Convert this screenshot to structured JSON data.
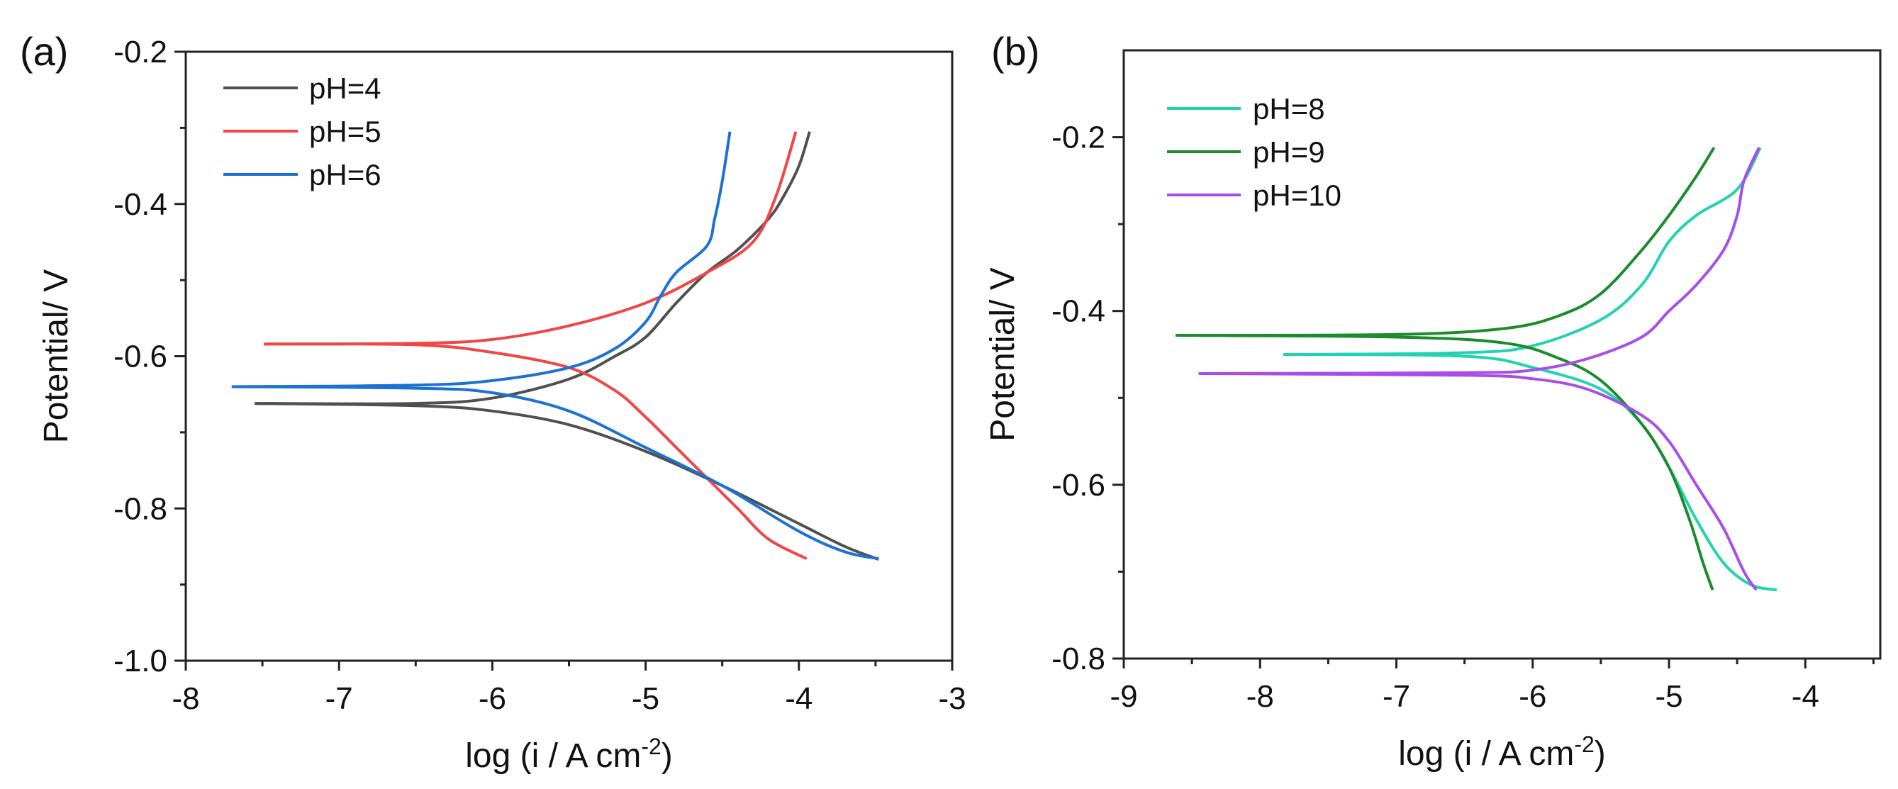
{
  "chart_data": [
    {
      "type": "line",
      "panel_label": "(a)",
      "xlabel": "log (i / A cm",
      "xlabel_sup": "-2",
      "xlabel_close": ")",
      "ylabel": "Potential/ V",
      "xlim": [
        -8,
        -3
      ],
      "ylim": [
        -1.0,
        -0.2
      ],
      "xticks": [
        "-8",
        "-7",
        "-6",
        "-5",
        "-4",
        "-3"
      ],
      "yticks": [
        "-0.2",
        "-0.4",
        "-0.6",
        "-0.8",
        "-1.0"
      ],
      "legend_position": "top-left",
      "series": [
        {
          "name": "pH=4",
          "color": "#505050",
          "anodic": [
            [
              -7.55,
              -0.662
            ],
            [
              -6.5,
              -0.662
            ],
            [
              -6,
              -0.655
            ],
            [
              -5.5,
              -0.63
            ],
            [
              -5.2,
              -0.6
            ],
            [
              -5,
              -0.575
            ],
            [
              -4.8,
              -0.53
            ],
            [
              -4.6,
              -0.49
            ],
            [
              -4.4,
              -0.46
            ],
            [
              -4.2,
              -0.42
            ],
            [
              -4.1,
              -0.39
            ],
            [
              -4.0,
              -0.35
            ],
            [
              -3.93,
              -0.305
            ]
          ],
          "cathodic": [
            [
              -7.55,
              -0.662
            ],
            [
              -6.5,
              -0.665
            ],
            [
              -6,
              -0.672
            ],
            [
              -5.5,
              -0.69
            ],
            [
              -5,
              -0.725
            ],
            [
              -4.5,
              -0.77
            ],
            [
              -4,
              -0.82
            ],
            [
              -3.7,
              -0.85
            ],
            [
              -3.48,
              -0.867
            ]
          ]
        },
        {
          "name": "pH=5",
          "color": "#f24545",
          "anodic": [
            [
              -7.49,
              -0.584
            ],
            [
              -6.5,
              -0.583
            ],
            [
              -6,
              -0.578
            ],
            [
              -5.5,
              -0.56
            ],
            [
              -5,
              -0.53
            ],
            [
              -4.6,
              -0.49
            ],
            [
              -4.3,
              -0.45
            ],
            [
              -4.15,
              -0.39
            ],
            [
              -4.02,
              -0.305
            ]
          ],
          "cathodic": [
            [
              -7.49,
              -0.584
            ],
            [
              -6.5,
              -0.585
            ],
            [
              -6,
              -0.595
            ],
            [
              -5.5,
              -0.615
            ],
            [
              -5.2,
              -0.645
            ],
            [
              -5,
              -0.68
            ],
            [
              -4.8,
              -0.72
            ],
            [
              -4.6,
              -0.76
            ],
            [
              -4.4,
              -0.8
            ],
            [
              -4.2,
              -0.84
            ],
            [
              -3.95,
              -0.866
            ]
          ]
        },
        {
          "name": "pH=6",
          "color": "#1c72d4",
          "anodic": [
            [
              -7.7,
              -0.64
            ],
            [
              -6.5,
              -0.638
            ],
            [
              -6,
              -0.632
            ],
            [
              -5.5,
              -0.615
            ],
            [
              -5.2,
              -0.59
            ],
            [
              -5,
              -0.555
            ],
            [
              -4.9,
              -0.52
            ],
            [
              -4.8,
              -0.49
            ],
            [
              -4.6,
              -0.455
            ],
            [
              -4.55,
              -0.42
            ],
            [
              -4.5,
              -0.37
            ],
            [
              -4.45,
              -0.305
            ]
          ],
          "cathodic": [
            [
              -7.7,
              -0.64
            ],
            [
              -6.5,
              -0.642
            ],
            [
              -6,
              -0.648
            ],
            [
              -5.5,
              -0.672
            ],
            [
              -5,
              -0.72
            ],
            [
              -4.5,
              -0.77
            ],
            [
              -4,
              -0.83
            ],
            [
              -3.7,
              -0.857
            ],
            [
              -3.48,
              -0.866
            ]
          ]
        }
      ]
    },
    {
      "type": "line",
      "panel_label": "(b)",
      "xlabel": "log (i / A cm",
      "xlabel_sup": "-2",
      "xlabel_close": ")",
      "ylabel": "Potential/ V",
      "xlim": [
        -9,
        -3.45
      ],
      "ylim": [
        -0.8,
        -0.1
      ],
      "xticks": [
        "-9",
        "-8",
        "-7",
        "-6",
        "-5",
        "-4"
      ],
      "yticks": [
        "-0.2",
        "-0.4",
        "-0.6",
        "-0.8"
      ],
      "legend_position": "top-left",
      "series": [
        {
          "name": "pH=8",
          "color": "#22d3b2",
          "anodic": [
            [
              -7.83,
              -0.45
            ],
            [
              -6.5,
              -0.448
            ],
            [
              -6,
              -0.44
            ],
            [
              -5.5,
              -0.41
            ],
            [
              -5.2,
              -0.37
            ],
            [
              -5,
              -0.32
            ],
            [
              -4.8,
              -0.29
            ],
            [
              -4.5,
              -0.26
            ],
            [
              -4.33,
              -0.212
            ]
          ],
          "cathodic": [
            [
              -7.83,
              -0.45
            ],
            [
              -6.5,
              -0.452
            ],
            [
              -6,
              -0.465
            ],
            [
              -5.5,
              -0.49
            ],
            [
              -5.2,
              -0.53
            ],
            [
              -5,
              -0.58
            ],
            [
              -4.8,
              -0.64
            ],
            [
              -4.6,
              -0.69
            ],
            [
              -4.4,
              -0.715
            ],
            [
              -4.21,
              -0.721
            ]
          ]
        },
        {
          "name": "pH=9",
          "color": "#1a8c2c",
          "anodic": [
            [
              -8.62,
              -0.428
            ],
            [
              -7,
              -0.427
            ],
            [
              -6.2,
              -0.42
            ],
            [
              -5.8,
              -0.405
            ],
            [
              -5.5,
              -0.38
            ],
            [
              -5.2,
              -0.33
            ],
            [
              -5,
              -0.29
            ],
            [
              -4.8,
              -0.245
            ],
            [
              -4.67,
              -0.212
            ]
          ],
          "cathodic": [
            [
              -8.62,
              -0.428
            ],
            [
              -7,
              -0.43
            ],
            [
              -6.2,
              -0.437
            ],
            [
              -5.8,
              -0.455
            ],
            [
              -5.5,
              -0.48
            ],
            [
              -5.2,
              -0.53
            ],
            [
              -5,
              -0.58
            ],
            [
              -4.85,
              -0.64
            ],
            [
              -4.75,
              -0.69
            ],
            [
              -4.68,
              -0.721
            ]
          ]
        },
        {
          "name": "pH=10",
          "color": "#a84ee8",
          "anodic": [
            [
              -8.45,
              -0.472
            ],
            [
              -6.5,
              -0.471
            ],
            [
              -6,
              -0.468
            ],
            [
              -5.6,
              -0.455
            ],
            [
              -5.2,
              -0.43
            ],
            [
              -5,
              -0.4
            ],
            [
              -4.8,
              -0.37
            ],
            [
              -4.6,
              -0.33
            ],
            [
              -4.5,
              -0.29
            ],
            [
              -4.45,
              -0.25
            ],
            [
              -4.34,
              -0.212
            ]
          ],
          "cathodic": [
            [
              -8.45,
              -0.472
            ],
            [
              -6.5,
              -0.474
            ],
            [
              -6,
              -0.478
            ],
            [
              -5.6,
              -0.49
            ],
            [
              -5.2,
              -0.52
            ],
            [
              -5,
              -0.55
            ],
            [
              -4.8,
              -0.6
            ],
            [
              -4.6,
              -0.65
            ],
            [
              -4.45,
              -0.7
            ],
            [
              -4.36,
              -0.721
            ]
          ]
        }
      ]
    }
  ]
}
